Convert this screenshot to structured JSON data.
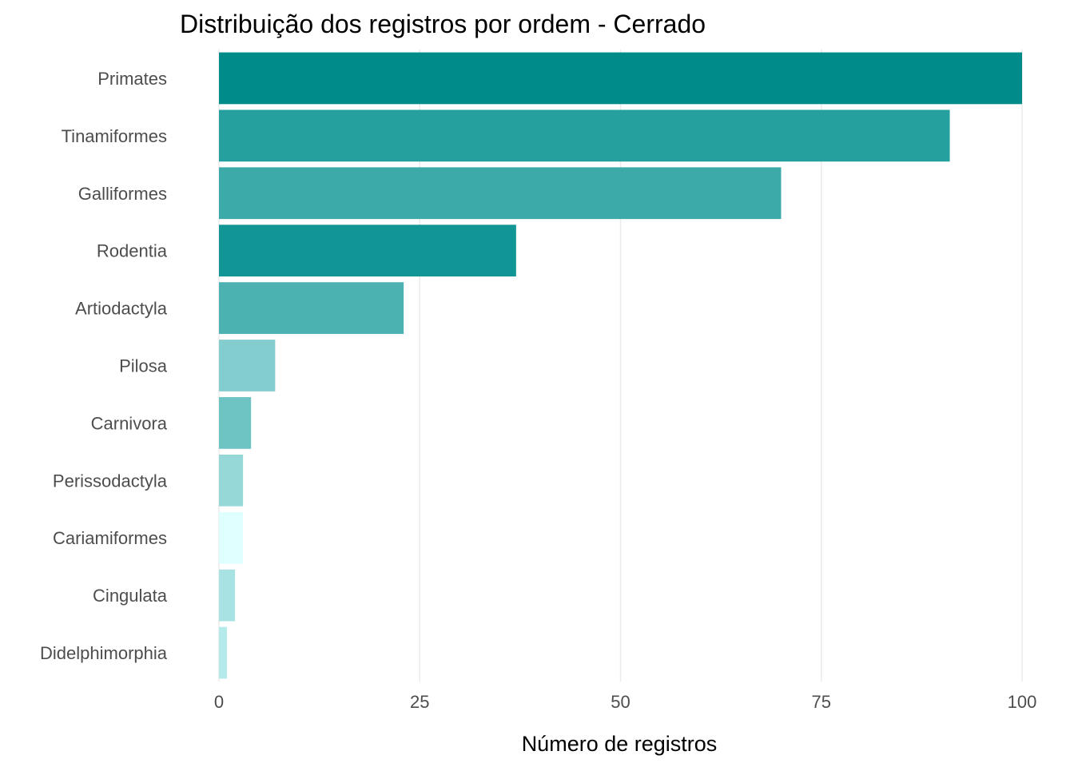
{
  "chart_data": {
    "type": "bar",
    "orientation": "horizontal",
    "title": "Distribuição dos registros por ordem - Cerrado",
    "xlabel": "Número de registros",
    "ylabel": "",
    "xlim": [
      0,
      100
    ],
    "x_ticks": [
      "0",
      "25",
      "50",
      "75",
      "100"
    ],
    "grid": true,
    "legend": "none",
    "categories": [
      "Primates",
      "Tinamiformes",
      "Galliformes",
      "Rodentia",
      "Artiodactyla",
      "Pilosa",
      "Carnivora",
      "Perissodactyla",
      "Cariamiformes",
      "Cingulata",
      "Didelphimorphia"
    ],
    "values": [
      100,
      91,
      70,
      37,
      23,
      7,
      4,
      3,
      3,
      2,
      1
    ],
    "colors": [
      "#008B8B",
      "#26A09E",
      "#3BAAA9",
      "#119595",
      "#4BB1B1",
      "#84CDCE",
      "#6EC3C3",
      "#96D8D8",
      "#E0FFFF",
      "#A8E2E2",
      "#B5EAEA"
    ]
  }
}
